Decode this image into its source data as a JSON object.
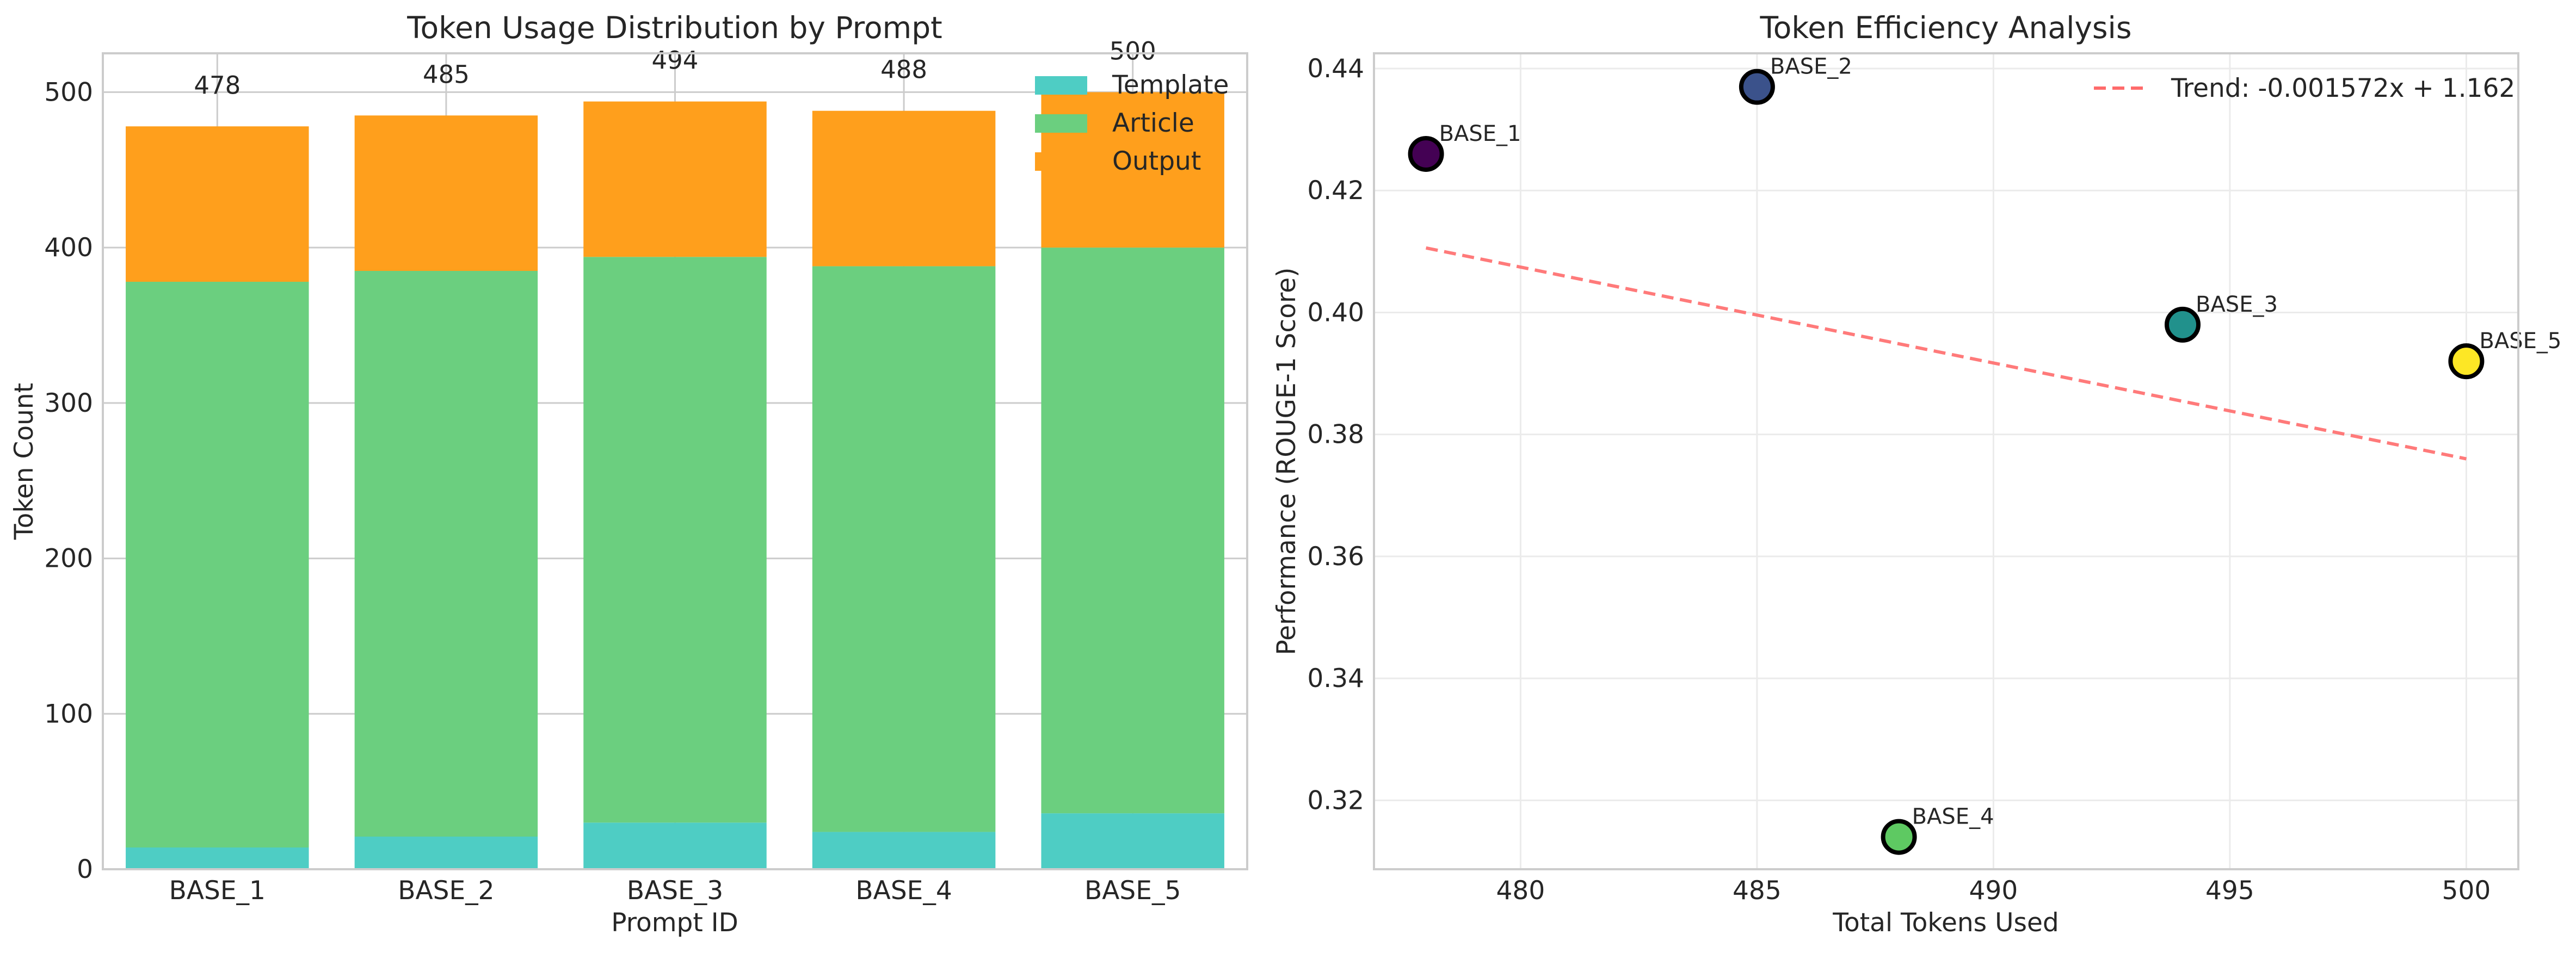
{
  "chart_data": [
    {
      "type": "bar",
      "stacked": true,
      "title": "Token Usage Distribution by Prompt",
      "xlabel": "Prompt ID",
      "ylabel": "Token Count",
      "categories": [
        "BASE_1",
        "BASE_2",
        "BASE_3",
        "BASE_4",
        "BASE_5"
      ],
      "series": [
        {
          "name": "Template",
          "color": "#4ECDC4",
          "values": [
            14,
            21,
            30,
            24,
            36
          ]
        },
        {
          "name": "Article",
          "color": "#6BCF7F",
          "values": [
            364,
            364,
            364,
            364,
            364
          ]
        },
        {
          "name": "Output",
          "color": "#FF9F1C",
          "values": [
            100,
            100,
            100,
            100,
            100
          ]
        }
      ],
      "totals": [
        "478",
        "485",
        "494",
        "488",
        "500"
      ],
      "ylim": [
        0,
        525
      ],
      "yticks": [
        0,
        100,
        200,
        300,
        400,
        500
      ],
      "legend_position": "top-right",
      "grid": true
    },
    {
      "type": "scatter",
      "title": "Token Efficiency Analysis",
      "xlabel": "Total Tokens Used",
      "ylabel": "Performance (ROUGE-1 Score)",
      "points": [
        {
          "label": "BASE_1",
          "x": 478,
          "y": 0.426,
          "color": "#440154"
        },
        {
          "label": "BASE_2",
          "x": 485,
          "y": 0.437,
          "color": "#3B528B"
        },
        {
          "label": "BASE_3",
          "x": 494,
          "y": 0.398,
          "color": "#21918C"
        },
        {
          "label": "BASE_4",
          "x": 488,
          "y": 0.314,
          "color": "#5EC962"
        },
        {
          "label": "BASE_5",
          "x": 500,
          "y": 0.392,
          "color": "#FDE725"
        }
      ],
      "trend": {
        "label": "Trend: -0.001572x + 1.162",
        "slope": -0.001572,
        "intercept": 1.162,
        "color": "#FF6B6B"
      },
      "xlim": [
        476.9,
        501.1
      ],
      "ylim": [
        0.3087,
        0.4425
      ],
      "xticks": [
        480,
        485,
        490,
        495,
        500
      ],
      "yticks": [
        0.32,
        0.34,
        0.36,
        0.38,
        0.4,
        0.42,
        0.44
      ],
      "legend_position": "top-right",
      "grid": true
    }
  ]
}
